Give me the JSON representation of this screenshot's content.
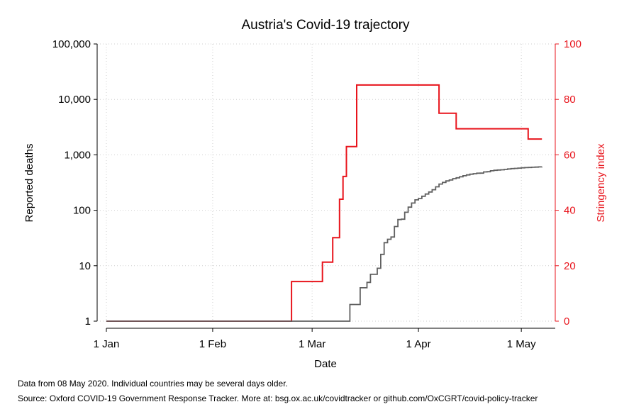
{
  "chart_data": {
    "type": "line",
    "title": "Austria's Covid-19 trajectory",
    "xlabel": "Date",
    "ylabel_left": "Reported deaths",
    "ylabel_right": "Stringency index",
    "x_ticks": [
      {
        "date": "2020-01-01",
        "label": "1 Jan"
      },
      {
        "date": "2020-02-01",
        "label": "1 Feb"
      },
      {
        "date": "2020-03-01",
        "label": "1 Mar"
      },
      {
        "date": "2020-04-01",
        "label": "1 Apr"
      },
      {
        "date": "2020-05-01",
        "label": "1 May"
      }
    ],
    "xlim": [
      "2020-01-01",
      "2020-05-08"
    ],
    "y_left": {
      "scale": "log",
      "ylim": [
        1,
        100000
      ],
      "ticks": [
        {
          "value": 1,
          "label": "1"
        },
        {
          "value": 10,
          "label": "10"
        },
        {
          "value": 100,
          "label": "100"
        },
        {
          "value": 1000,
          "label": "1,000"
        },
        {
          "value": 10000,
          "label": "10,000"
        },
        {
          "value": 100000,
          "label": "100,000"
        }
      ]
    },
    "y_right": {
      "scale": "linear",
      "ylim": [
        0,
        100
      ],
      "ticks": [
        {
          "value": 0,
          "label": "0"
        },
        {
          "value": 20,
          "label": "20"
        },
        {
          "value": 40,
          "label": "40"
        },
        {
          "value": 60,
          "label": "60"
        },
        {
          "value": 80,
          "label": "80"
        },
        {
          "value": 100,
          "label": "100"
        }
      ]
    },
    "grid": true,
    "series": [
      {
        "axis": "right",
        "color": "#e8141c",
        "step": true,
        "points": [
          [
            "2020-01-01",
            0
          ],
          [
            "2020-02-24",
            14.3
          ],
          [
            "2020-03-03",
            14.3
          ],
          [
            "2020-03-04",
            21.3
          ],
          [
            "2020-03-06",
            21.3
          ],
          [
            "2020-03-07",
            30.1
          ],
          [
            "2020-03-08",
            30.1
          ],
          [
            "2020-03-09",
            44
          ],
          [
            "2020-03-10",
            52.2
          ],
          [
            "2020-03-11",
            63
          ],
          [
            "2020-03-13",
            63
          ],
          [
            "2020-03-14",
            85.2
          ],
          [
            "2020-04-06",
            85.2
          ],
          [
            "2020-04-07",
            75
          ],
          [
            "2020-04-11",
            75
          ],
          [
            "2020-04-12",
            69.4
          ],
          [
            "2020-05-02",
            69.4
          ],
          [
            "2020-05-03",
            65.7
          ],
          [
            "2020-05-07",
            65.7
          ]
        ]
      },
      {
        "axis": "left",
        "color": "#606060",
        "step": true,
        "points": [
          [
            "2020-01-01",
            1
          ],
          [
            "2020-03-11",
            1
          ],
          [
            "2020-03-12",
            2
          ],
          [
            "2020-03-14",
            2
          ],
          [
            "2020-03-15",
            4
          ],
          [
            "2020-03-16",
            4
          ],
          [
            "2020-03-17",
            5
          ],
          [
            "2020-03-18",
            7
          ],
          [
            "2020-03-19",
            7
          ],
          [
            "2020-03-20",
            9
          ],
          [
            "2020-03-21",
            16
          ],
          [
            "2020-03-22",
            26
          ],
          [
            "2020-03-23",
            30
          ],
          [
            "2020-03-24",
            33
          ],
          [
            "2020-03-25",
            51
          ],
          [
            "2020-03-26",
            68
          ],
          [
            "2020-03-27",
            69
          ],
          [
            "2020-03-28",
            92
          ],
          [
            "2020-03-29",
            114
          ],
          [
            "2020-03-30",
            135
          ],
          [
            "2020-03-31",
            154
          ],
          [
            "2020-04-01",
            163
          ],
          [
            "2020-04-02",
            179
          ],
          [
            "2020-04-03",
            196
          ],
          [
            "2020-04-04",
            214
          ],
          [
            "2020-04-05",
            235
          ],
          [
            "2020-04-06",
            265
          ],
          [
            "2020-04-07",
            297
          ],
          [
            "2020-04-08",
            318
          ],
          [
            "2020-04-09",
            338
          ],
          [
            "2020-04-10",
            352
          ],
          [
            "2020-04-11",
            372
          ],
          [
            "2020-04-12",
            385
          ],
          [
            "2020-04-13",
            403
          ],
          [
            "2020-04-14",
            419
          ],
          [
            "2020-04-15",
            434
          ],
          [
            "2020-04-16",
            448
          ],
          [
            "2020-04-17",
            457
          ],
          [
            "2020-04-18",
            467
          ],
          [
            "2020-04-19",
            468
          ],
          [
            "2020-04-20",
            492
          ],
          [
            "2020-04-21",
            496
          ],
          [
            "2020-04-22",
            515
          ],
          [
            "2020-04-23",
            526
          ],
          [
            "2020-04-24",
            533
          ],
          [
            "2020-04-25",
            537
          ],
          [
            "2020-04-26",
            545
          ],
          [
            "2020-04-27",
            557
          ],
          [
            "2020-04-28",
            564
          ],
          [
            "2020-04-29",
            570
          ],
          [
            "2020-04-30",
            576
          ],
          [
            "2020-05-01",
            584
          ],
          [
            "2020-05-02",
            589
          ],
          [
            "2020-05-03",
            592
          ],
          [
            "2020-05-04",
            598
          ],
          [
            "2020-05-05",
            600
          ],
          [
            "2020-05-06",
            607
          ],
          [
            "2020-05-07",
            609
          ]
        ]
      }
    ]
  },
  "notes": {
    "line1": "Data from 08 May 2020. Individual countries may be several days older.",
    "line2": "Source: Oxford COVID-19 Government Response Tracker. More at: bsg.ox.ac.uk/covidtracker or github.com/OxCGRT/covid-policy-tracker"
  }
}
